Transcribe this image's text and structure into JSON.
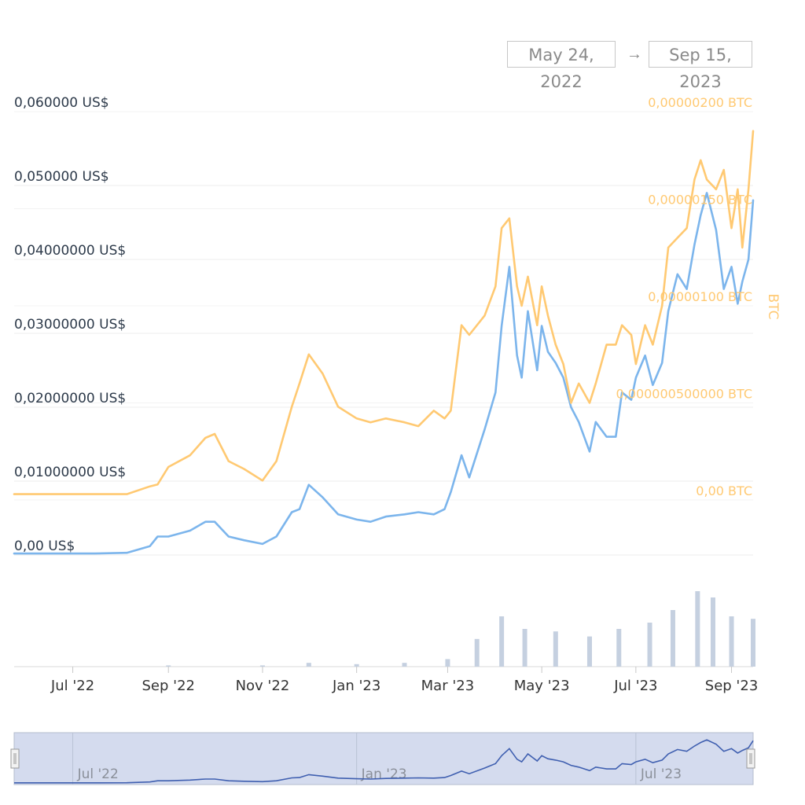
{
  "date_range": {
    "start": "May 24, 2022",
    "arrow": "→",
    "end": "Sep 15, 2023"
  },
  "chart_data": {
    "type": "line",
    "x_ticks": [
      "Jul '22",
      "Sep '22",
      "Nov '22",
      "Jan '23",
      "Mar '23",
      "May '23",
      "Jul '23",
      "Sep '23"
    ],
    "left_axis": {
      "ticks": [
        "0,00 US$",
        "0,01000000 US$",
        "0,02000000 US$",
        "0,03000000 US$",
        "0,04000000 US$",
        "0,050000 US$",
        "0,060000 US$"
      ],
      "tick_values": [
        0,
        0.01,
        0.02,
        0.03,
        0.04,
        0.05,
        0.06
      ],
      "ylim": [
        0,
        0.06
      ]
    },
    "right_axis": {
      "label": "BTC",
      "ticks": [
        "0,00 BTC",
        "0,000000500000 BTC",
        "0,00000100 BTC",
        "0,00000150 BTC",
        "0,00000200 BTC"
      ],
      "tick_values": [
        0,
        5e-07,
        1e-06,
        1.5e-06,
        2e-06
      ],
      "ylim": [
        0,
        2e-06
      ]
    },
    "series": [
      {
        "color": "#7cb5ec",
        "axis": "left",
        "x": [
          "2022-05-24",
          "2022-06-15",
          "2022-07-15",
          "2022-08-05",
          "2022-08-20",
          "2022-08-25",
          "2022-09-01",
          "2022-09-15",
          "2022-09-25",
          "2022-10-01",
          "2022-10-10",
          "2022-10-20",
          "2022-11-01",
          "2022-11-10",
          "2022-11-20",
          "2022-11-25",
          "2022-12-01",
          "2022-12-10",
          "2022-12-20",
          "2023-01-01",
          "2023-01-10",
          "2023-01-20",
          "2023-02-01",
          "2023-02-10",
          "2023-02-20",
          "2023-02-27",
          "2023-03-03",
          "2023-03-10",
          "2023-03-15",
          "2023-03-25",
          "2023-04-01",
          "2023-04-05",
          "2023-04-10",
          "2023-04-15",
          "2023-04-18",
          "2023-04-22",
          "2023-04-28",
          "2023-05-01",
          "2023-05-05",
          "2023-05-10",
          "2023-05-15",
          "2023-05-20",
          "2023-05-25",
          "2023-06-01",
          "2023-06-05",
          "2023-06-12",
          "2023-06-18",
          "2023-06-22",
          "2023-06-28",
          "2023-07-01",
          "2023-07-07",
          "2023-07-12",
          "2023-07-18",
          "2023-07-22",
          "2023-07-28",
          "2023-08-03",
          "2023-08-08",
          "2023-08-12",
          "2023-08-16",
          "2023-08-22",
          "2023-08-27",
          "2023-09-01",
          "2023-09-05",
          "2023-09-08",
          "2023-09-12",
          "2023-09-15"
        ],
        "y": [
          0.0002,
          0.0002,
          0.0002,
          0.0003,
          0.0012,
          0.0025,
          0.0025,
          0.0033,
          0.0045,
          0.0045,
          0.0025,
          0.002,
          0.0015,
          0.0025,
          0.0058,
          0.0062,
          0.0095,
          0.0078,
          0.0055,
          0.0048,
          0.0045,
          0.0052,
          0.0055,
          0.0058,
          0.0055,
          0.0062,
          0.0085,
          0.0135,
          0.0105,
          0.017,
          0.022,
          0.031,
          0.039,
          0.027,
          0.024,
          0.033,
          0.025,
          0.031,
          0.0275,
          0.026,
          0.024,
          0.02,
          0.018,
          0.014,
          0.018,
          0.016,
          0.016,
          0.022,
          0.021,
          0.024,
          0.027,
          0.023,
          0.026,
          0.033,
          0.038,
          0.036,
          0.042,
          0.046,
          0.049,
          0.044,
          0.036,
          0.039,
          0.034,
          0.037,
          0.04,
          0.048
        ]
      },
      {
        "color": "#ffc972",
        "axis": "right",
        "x": [
          "2022-05-24",
          "2022-06-15",
          "2022-07-15",
          "2022-08-05",
          "2022-08-20",
          "2022-08-25",
          "2022-09-01",
          "2022-09-15",
          "2022-09-25",
          "2022-10-01",
          "2022-10-10",
          "2022-10-20",
          "2022-11-01",
          "2022-11-10",
          "2022-11-20",
          "2022-11-25",
          "2022-12-01",
          "2022-12-10",
          "2022-12-20",
          "2023-01-01",
          "2023-01-10",
          "2023-01-20",
          "2023-02-01",
          "2023-02-10",
          "2023-02-20",
          "2023-02-27",
          "2023-03-03",
          "2023-03-10",
          "2023-03-15",
          "2023-03-25",
          "2023-04-01",
          "2023-04-05",
          "2023-04-10",
          "2023-04-15",
          "2023-04-18",
          "2023-04-22",
          "2023-04-28",
          "2023-05-01",
          "2023-05-05",
          "2023-05-10",
          "2023-05-15",
          "2023-05-20",
          "2023-05-25",
          "2023-06-01",
          "2023-06-05",
          "2023-06-12",
          "2023-06-18",
          "2023-06-22",
          "2023-06-28",
          "2023-07-01",
          "2023-07-07",
          "2023-07-12",
          "2023-07-18",
          "2023-07-22",
          "2023-07-28",
          "2023-08-03",
          "2023-08-08",
          "2023-08-12",
          "2023-08-16",
          "2023-08-22",
          "2023-08-27",
          "2023-09-01",
          "2023-09-05",
          "2023-09-08",
          "2023-09-12",
          "2023-09-15"
        ],
        "y": [
          3e-08,
          3e-08,
          3e-08,
          3e-08,
          7e-08,
          8e-08,
          1.7e-07,
          2.3e-07,
          3.2e-07,
          3.4e-07,
          2e-07,
          1.6e-07,
          1e-07,
          2e-07,
          4.8e-07,
          6e-07,
          7.5e-07,
          6.5e-07,
          4.8e-07,
          4.2e-07,
          4e-07,
          4.2e-07,
          4e-07,
          3.8e-07,
          4.6e-07,
          4.2e-07,
          4.6e-07,
          9e-07,
          8.5e-07,
          9.5e-07,
          1.1e-06,
          1.4e-06,
          1.45e-06,
          1.1e-06,
          1e-06,
          1.15e-06,
          9e-07,
          1.1e-06,
          9.5e-07,
          8e-07,
          7e-07,
          5e-07,
          6e-07,
          5e-07,
          6e-07,
          8e-07,
          8e-07,
          9e-07,
          8.5e-07,
          7e-07,
          9e-07,
          8e-07,
          1e-06,
          1.3e-06,
          1.35e-06,
          1.4e-06,
          1.65e-06,
          1.75e-06,
          1.65e-06,
          1.6e-06,
          1.7e-06,
          1.4e-06,
          1.6e-06,
          1.3e-06,
          1.6e-06,
          1.9e-06
        ]
      }
    ],
    "volume": {
      "color": "#c5d0e0",
      "x": [
        "2022-05-24",
        "2022-07-01",
        "2022-09-01",
        "2022-11-01",
        "2022-12-01",
        "2023-01-01",
        "2023-02-01",
        "2023-03-01",
        "2023-03-20",
        "2023-04-05",
        "2023-04-20",
        "2023-05-10",
        "2023-06-01",
        "2023-06-20",
        "2023-07-10",
        "2023-07-25",
        "2023-08-10",
        "2023-08-20",
        "2023-09-01",
        "2023-09-15"
      ],
      "values": [
        0,
        0,
        1,
        1,
        3,
        2,
        3,
        6,
        22,
        40,
        30,
        28,
        24,
        30,
        35,
        45,
        60,
        55,
        40,
        38
      ]
    },
    "navigator": {
      "x_ticks": [
        "Jul '22",
        "Jan '23",
        "Jul '23"
      ]
    },
    "grid": true
  }
}
